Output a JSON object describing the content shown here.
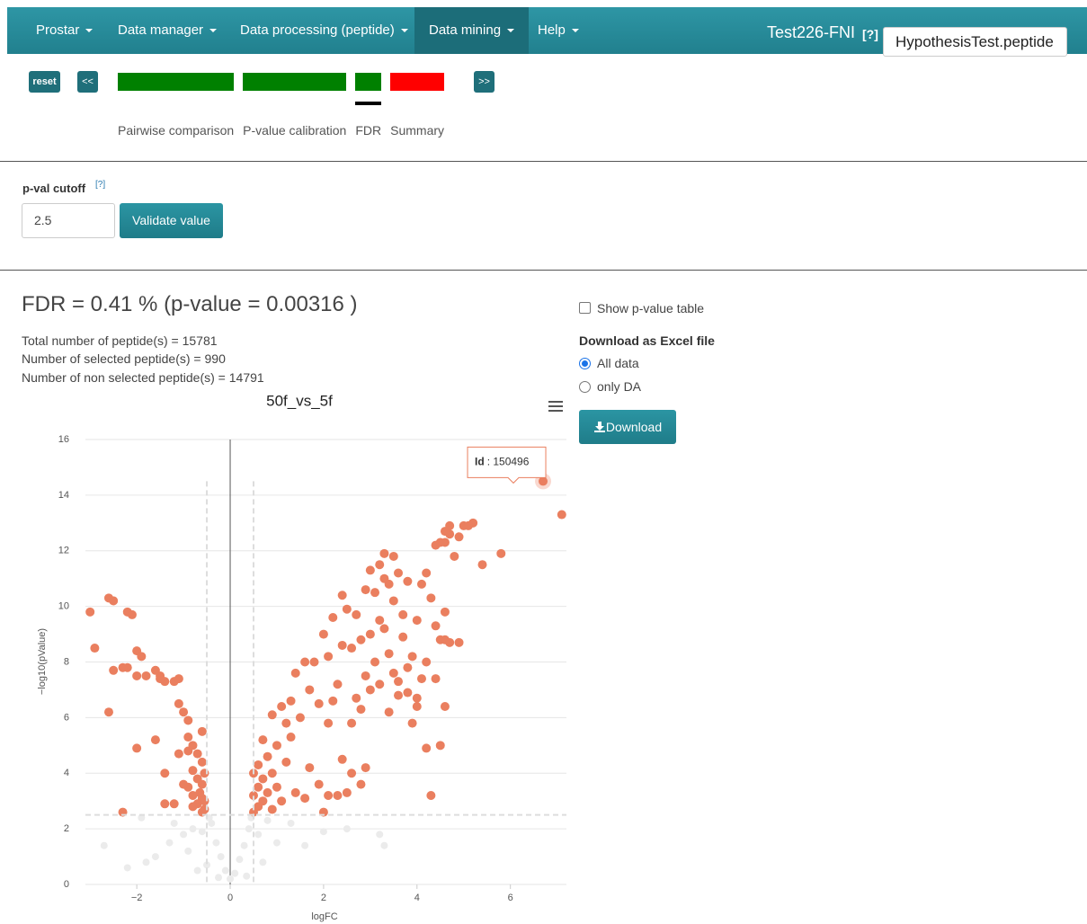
{
  "nav": {
    "items": [
      "Prostar",
      "Data manager",
      "Data processing (peptide)",
      "Data mining",
      "Help"
    ],
    "active": 3,
    "dataset": "Test226-FNI",
    "help": "[?]",
    "select": "HypothesisTest.peptide"
  },
  "stepper": {
    "reset": "reset",
    "prev": "<<",
    "next": ">>",
    "current": 2,
    "steps": [
      {
        "label": "Pairwise comparison",
        "color": "#008000"
      },
      {
        "label": "P-value calibration",
        "color": "#008000"
      },
      {
        "label": "FDR",
        "color": "#008000"
      },
      {
        "label": "Summary",
        "color": "#ff0000"
      }
    ]
  },
  "cutoff": {
    "label": "p-val cutoff",
    "help": "[?]",
    "input": "2.5",
    "button": "Validate value"
  },
  "fdr": {
    "heading": "FDR = 0.41 % (p-value = 0.00316 )",
    "lines": [
      "Total number of peptide(s) = 15781",
      "Number of selected peptide(s) = 990",
      "Number of non selected peptide(s) = 14791"
    ]
  },
  "side": {
    "checkbox": "Show p-value table",
    "download_title": "Download as Excel file",
    "radios": [
      "All data",
      "only DA"
    ],
    "checked": 0,
    "button": "Download"
  },
  "chart_data": {
    "type": "scatter",
    "title": "50f_vs_5f",
    "x_label": "logFC",
    "y_label": "−log10(pValue)",
    "xlim": [
      -3.1,
      7.2
    ],
    "ylim": [
      0,
      16
    ],
    "xticks": [
      {
        "value": -2,
        "label": "−2"
      },
      0,
      2,
      4,
      6
    ],
    "yticks": [
      0,
      2,
      4,
      6,
      8,
      10,
      12,
      14,
      16
    ],
    "grid": true,
    "hline": 2.5,
    "vlines": [
      -0.5,
      0.5
    ],
    "tooltip": {
      "label": "Id",
      "value": ": 150496"
    },
    "series": [
      {
        "color": "#ebebeb",
        "x": [
          -0.4,
          -0.3,
          -0.2,
          -0.1,
          0,
          0.1,
          0.2,
          0.3,
          0.4,
          0.45,
          -0.45,
          -0.6,
          -0.8,
          -1.0,
          -1.3,
          -1.6,
          -2.7,
          -2.2,
          -1.8,
          -1.2,
          -0.9,
          -0.5,
          0.6,
          0.8,
          1.0,
          1.3,
          1.6,
          2.0,
          2.5,
          3.2,
          3.3,
          -1.9,
          0.7,
          -0.7,
          0.35,
          -0.25
        ],
        "values": [
          2.2,
          1.5,
          1.0,
          0.5,
          0.2,
          0.4,
          0.9,
          1.4,
          2.0,
          2.4,
          2.4,
          1.9,
          2.0,
          1.8,
          1.5,
          1.0,
          1.4,
          0.6,
          0.8,
          2.2,
          1.2,
          0.7,
          1.8,
          2.3,
          1.5,
          2.2,
          1.4,
          1.9,
          2.0,
          1.8,
          1.4,
          2.4,
          0.8,
          0.5,
          0.3,
          0.25
        ]
      },
      {
        "color": "#ea7f5f",
        "x": [
          -3.0,
          -2.9,
          -2.6,
          -2.5,
          -2.5,
          -2.6,
          -2.2,
          -2.2,
          -2.1,
          -2.3,
          -2.0,
          -1.9,
          -2.0,
          -1.8,
          -1.6,
          -1.5,
          -1.4,
          -1.2,
          -1.1,
          -1.5,
          -1.6,
          -2.0,
          -2.3,
          -1.4,
          -1.4,
          -1.2,
          -1.1,
          -1.0,
          -0.9,
          -1.1,
          -0.9,
          -0.8,
          -0.7,
          -0.6,
          -0.8,
          -0.7,
          -0.6,
          -0.9,
          -0.8,
          -0.6,
          -0.7,
          -0.55,
          -0.6,
          -0.8,
          -1.0,
          -0.9,
          -0.6,
          -0.55,
          -0.65,
          -0.55,
          0.5,
          0.6,
          0.7,
          0.5,
          0.6,
          0.8,
          0.7,
          0.5,
          0.6,
          0.8,
          0.9,
          1.0,
          1.1,
          0.9,
          0.7,
          1.0,
          1.2,
          1.3,
          1.4,
          1.6,
          1.7,
          1.9,
          2.0,
          2.1,
          2.3,
          2.5,
          2.4,
          2.6,
          2.8,
          2.9,
          0.9,
          1.1,
          1.3,
          1.2,
          1.5,
          1.7,
          1.4,
          1.6,
          1.8,
          1.9,
          2.1,
          2.2,
          2.3,
          2.1,
          2.4,
          2.0,
          2.2,
          2.4,
          2.5,
          2.6,
          2.7,
          2.8,
          2.9,
          2.7,
          2.6,
          2.8,
          3.0,
          3.1,
          3.0,
          3.2,
          3.1,
          3.2,
          3.3,
          3.4,
          3.5,
          3.3,
          3.4,
          3.5,
          3.2,
          3.6,
          3.4,
          3.7,
          3.6,
          3.8,
          3.3,
          3.5,
          3.0,
          2.9,
          3.7,
          3.9,
          4.0,
          4.1,
          4.0,
          3.9,
          3.8,
          4.2,
          4.3,
          4.1,
          4.4,
          4.5,
          4.2,
          4.4,
          4.6,
          4.8,
          4.7,
          4.6,
          4.5,
          4.7,
          4.9,
          5.0,
          5.2,
          5.1,
          4.6,
          4.6,
          4.7,
          4.9,
          5.4,
          5.8,
          4.4,
          4.6,
          4.5,
          4.2,
          4.3,
          4.0,
          3.8,
          3.6,
          6.7,
          7.1
        ],
        "values": [
          9.8,
          8.5,
          10.3,
          10.2,
          7.7,
          6.2,
          9.8,
          7.8,
          9.7,
          7.8,
          8.4,
          8.2,
          7.5,
          7.5,
          7.7,
          7.5,
          7.3,
          7.3,
          7.4,
          7.4,
          5.2,
          4.9,
          2.6,
          4.0,
          2.9,
          2.9,
          6.5,
          6.2,
          5.9,
          4.7,
          5.3,
          5.0,
          4.7,
          4.4,
          4.1,
          3.8,
          3.6,
          3.5,
          3.2,
          3.1,
          2.9,
          2.7,
          2.6,
          2.8,
          3.6,
          4.8,
          5.5,
          4.0,
          3.3,
          3.0,
          2.6,
          2.8,
          3.0,
          3.2,
          3.5,
          3.3,
          3.8,
          4.0,
          4.3,
          4.6,
          4.0,
          3.5,
          3.0,
          2.7,
          5.2,
          5.0,
          4.4,
          5.3,
          3.3,
          3.1,
          4.2,
          3.6,
          2.6,
          3.2,
          3.2,
          3.3,
          4.5,
          4.0,
          3.6,
          4.2,
          6.1,
          6.4,
          6.6,
          5.8,
          6.0,
          7.0,
          7.6,
          8.0,
          8.0,
          6.5,
          5.8,
          6.6,
          7.2,
          8.2,
          8.6,
          9.0,
          9.6,
          10.4,
          9.9,
          8.5,
          9.7,
          8.8,
          7.5,
          6.7,
          5.8,
          6.3,
          7.0,
          8.0,
          9.0,
          9.5,
          10.5,
          11.5,
          11.9,
          10.8,
          10.2,
          9.2,
          8.3,
          7.6,
          7.2,
          6.8,
          6.2,
          9.7,
          11.2,
          10.9,
          11.0,
          11.8,
          11.3,
          10.6,
          8.9,
          8.2,
          9.5,
          7.4,
          6.4,
          5.8,
          6.9,
          11.2,
          10.3,
          10.8,
          9.3,
          8.8,
          8.0,
          12.2,
          12.3,
          11.8,
          12.6,
          12.7,
          12.3,
          12.9,
          12.5,
          12.9,
          13.0,
          12.9,
          9.8,
          8.8,
          8.7,
          8.7,
          11.5,
          11.9,
          7.4,
          6.4,
          5.0,
          4.9,
          3.2,
          6.7,
          7.8,
          7.3,
          14.5,
          13.3
        ]
      }
    ]
  }
}
